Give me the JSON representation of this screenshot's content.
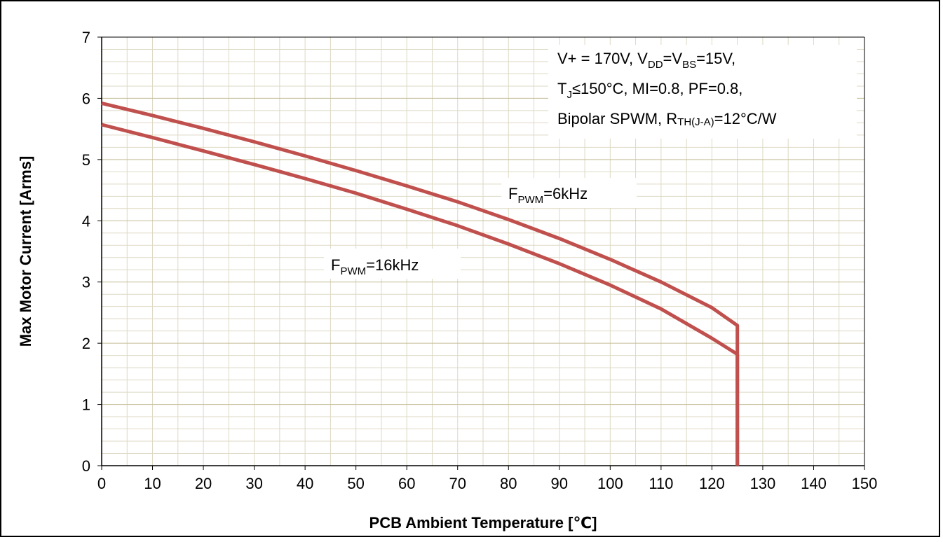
{
  "chart_data": {
    "type": "line",
    "xlabel": "PCB Ambient Temperature [℃]",
    "ylabel": "Max Motor Current [Arms]",
    "xlim": [
      0,
      150
    ],
    "ylim": [
      0,
      7
    ],
    "x_ticks": [
      0,
      10,
      20,
      30,
      40,
      50,
      60,
      70,
      80,
      90,
      100,
      110,
      120,
      130,
      140,
      150
    ],
    "y_ticks": [
      0,
      1,
      2,
      3,
      4,
      5,
      6,
      7
    ],
    "grid": true,
    "line_color": "#c0504d",
    "grid_color": "#ddd9c3",
    "series": [
      {
        "name": "FPWM=6kHz",
        "x": [
          0,
          10,
          20,
          30,
          40,
          50,
          60,
          70,
          80,
          90,
          100,
          110,
          120,
          125,
          125
        ],
        "y": [
          5.92,
          5.72,
          5.51,
          5.29,
          5.06,
          4.82,
          4.57,
          4.31,
          4.02,
          3.71,
          3.37,
          3.0,
          2.58,
          2.29,
          0
        ]
      },
      {
        "name": "FPWM=16kHz",
        "x": [
          0,
          10,
          20,
          30,
          40,
          50,
          60,
          70,
          80,
          90,
          100,
          110,
          120,
          125,
          125
        ],
        "y": [
          5.57,
          5.36,
          5.14,
          4.92,
          4.69,
          4.45,
          4.19,
          3.92,
          3.62,
          3.3,
          2.95,
          2.56,
          2.08,
          1.82,
          0
        ]
      }
    ],
    "annotations": {
      "conditions": {
        "line1": [
          "V+ = 170V, V",
          "DD",
          "=V",
          "BS",
          "=15V,"
        ],
        "line2": [
          "T",
          "J",
          "≤150°C, MI=0.8, PF=0.8,"
        ],
        "line3": [
          "Bipolar SPWM, R",
          "TH(J-A)",
          "=12°C/W"
        ]
      },
      "label_6k": [
        "F",
        "PWM",
        "=6kHz"
      ],
      "label_16k": [
        "F",
        "PWM",
        "=16kHz"
      ]
    }
  }
}
